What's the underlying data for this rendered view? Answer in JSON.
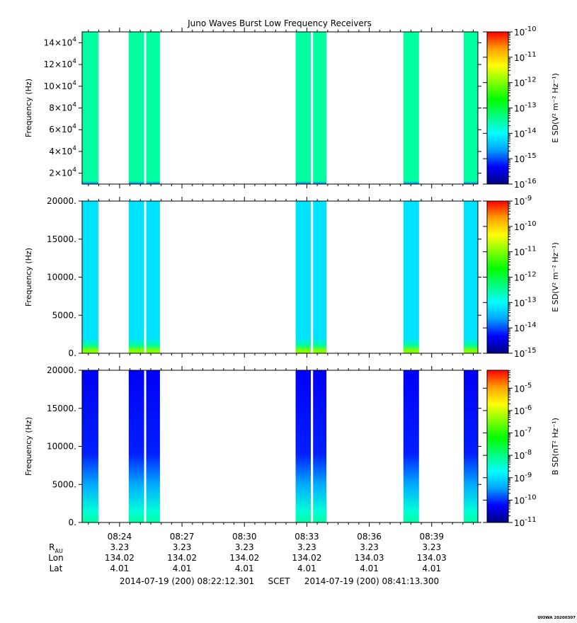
{
  "title": "Juno Waves Burst Low Frequency Receivers",
  "colors": {
    "background": "#ffffff",
    "axis": "#000000",
    "rainbow": [
      "#00007f",
      "#0000ff",
      "#00a0ff",
      "#00ffff",
      "#00ff80",
      "#00ff00",
      "#80ff00",
      "#ffff00",
      "#ffa000",
      "#ff0000"
    ]
  },
  "chart_data": [
    {
      "type": "heatmap",
      "panel": "top",
      "ylabel": "Frequency (Hz)",
      "ylim": [
        10000,
        150000
      ],
      "yticks": [
        {
          "value": 20000,
          "mant": "2×10",
          "exp": "4"
        },
        {
          "value": 40000,
          "mant": "4×10",
          "exp": "4"
        },
        {
          "value": 60000,
          "mant": "6×10",
          "exp": "4"
        },
        {
          "value": 80000,
          "mant": "8×10",
          "exp": "4"
        },
        {
          "value": 100000,
          "mant": "10×10",
          "exp": "4"
        },
        {
          "value": 120000,
          "mant": "12×10",
          "exp": "4"
        },
        {
          "value": 140000,
          "mant": "14×10",
          "exp": "4"
        }
      ],
      "colorbar": {
        "label": "E SD(V² m⁻² Hz⁻¹)",
        "scale": "log",
        "range_exp": [
          -16,
          -10
        ],
        "ticks": [
          {
            "exp": "-10",
            "text": "10"
          },
          {
            "exp": "-11",
            "text": "10"
          },
          {
            "exp": "-12",
            "text": "10"
          },
          {
            "exp": "-13",
            "text": "10"
          },
          {
            "exp": "-14",
            "text": "10"
          },
          {
            "exp": "-15",
            "text": "10"
          },
          {
            "exp": "-16",
            "text": "10"
          }
        ]
      },
      "dominant_log10_level": -13.5,
      "low_band_log10_level": -14.8
    },
    {
      "type": "heatmap",
      "panel": "middle",
      "ylabel": "Frequency (Hz)",
      "ylim": [
        0,
        20000
      ],
      "yticks": [
        {
          "value": 0,
          "text": "0."
        },
        {
          "value": 5000,
          "text": "5000."
        },
        {
          "value": 10000,
          "text": "10000."
        },
        {
          "value": 15000,
          "text": "15000."
        },
        {
          "value": 20000,
          "text": "20000."
        }
      ],
      "colorbar": {
        "label": "E SD(V² m⁻² Hz⁻¹)",
        "scale": "log",
        "range_exp": [
          -15,
          -9
        ],
        "ticks": [
          {
            "exp": "-9",
            "text": "10"
          },
          {
            "exp": "-10",
            "text": "10"
          },
          {
            "exp": "-11",
            "text": "10"
          },
          {
            "exp": "-12",
            "text": "10"
          },
          {
            "exp": "-13",
            "text": "10"
          },
          {
            "exp": "-14",
            "text": "10"
          },
          {
            "exp": "-15",
            "text": "10"
          }
        ]
      },
      "dominant_log10_level": -13.2,
      "low_band_log10_level": -11.0
    },
    {
      "type": "heatmap",
      "panel": "bottom",
      "ylabel": "Frequency (Hz)",
      "ylim": [
        0,
        20000
      ],
      "yticks": [
        {
          "value": 0,
          "text": "0."
        },
        {
          "value": 5000,
          "text": "5000."
        },
        {
          "value": 10000,
          "text": "10000."
        },
        {
          "value": 15000,
          "text": "15000."
        },
        {
          "value": 20000,
          "text": "20000."
        }
      ],
      "colorbar": {
        "label": "B SD(nT² Hz⁻¹)",
        "scale": "log",
        "range_exp": [
          -11,
          -4.2
        ],
        "ticks": [
          {
            "exp": "-5",
            "text": "10"
          },
          {
            "exp": "-6",
            "text": "10"
          },
          {
            "exp": "-7",
            "text": "10"
          },
          {
            "exp": "-8",
            "text": "10"
          },
          {
            "exp": "-9",
            "text": "10"
          },
          {
            "exp": "-10",
            "text": "10"
          },
          {
            "exp": "-11",
            "text": "10"
          }
        ]
      },
      "dominant_log10_level": -10.3,
      "low_band_log10_level": -8.5
    }
  ],
  "time_axis": {
    "start_minutes": 22.2,
    "end_minutes": 41.22,
    "labels": [
      {
        "minute": 24,
        "text": "08:24"
      },
      {
        "minute": 27,
        "text": "08:27"
      },
      {
        "minute": 30,
        "text": "08:30"
      },
      {
        "minute": 33,
        "text": "08:33"
      },
      {
        "minute": 36,
        "text": "08:36"
      },
      {
        "minute": 39,
        "text": "08:39"
      }
    ],
    "minor_ticks_minutes": [
      22.5,
      23,
      23.5,
      24,
      24.5,
      25,
      25.5,
      26,
      26.5,
      27,
      27.5,
      28,
      28.5,
      29,
      29.5,
      30,
      30.5,
      31,
      31.5,
      32,
      32.5,
      33,
      33.5,
      34,
      34.5,
      35,
      35.5,
      36,
      36.5,
      37,
      37.5,
      38,
      38.5,
      39,
      39.5,
      40,
      40.5,
      41
    ],
    "bursts_minutes": [
      [
        22.2,
        22.98
      ],
      [
        24.44,
        25.18
      ],
      [
        25.28,
        25.94
      ],
      [
        32.46,
        33.19
      ],
      [
        33.3,
        33.94
      ],
      [
        37.64,
        38.39
      ],
      [
        40.54,
        41.22
      ]
    ]
  },
  "ephemeris": {
    "rows": [
      {
        "label": "R",
        "sub": "AU",
        "values": [
          "3.23",
          "3.23",
          "3.23",
          "3.23",
          "3.23",
          "3.23"
        ]
      },
      {
        "label": "Lon",
        "values": [
          "134.02",
          "134.02",
          "134.02",
          "134.02",
          "134.03",
          "134.03"
        ]
      },
      {
        "label": "Lat",
        "values": [
          "4.01",
          "4.01",
          "4.01",
          "4.01",
          "4.01",
          "4.01"
        ]
      }
    ]
  },
  "footer": {
    "start": "2014-07-19 (200) 08:22:12.301",
    "scet": "SCET",
    "end": "2014-07-19 (200) 08:41:13.300"
  },
  "stamp": "UIOWA 20200307"
}
